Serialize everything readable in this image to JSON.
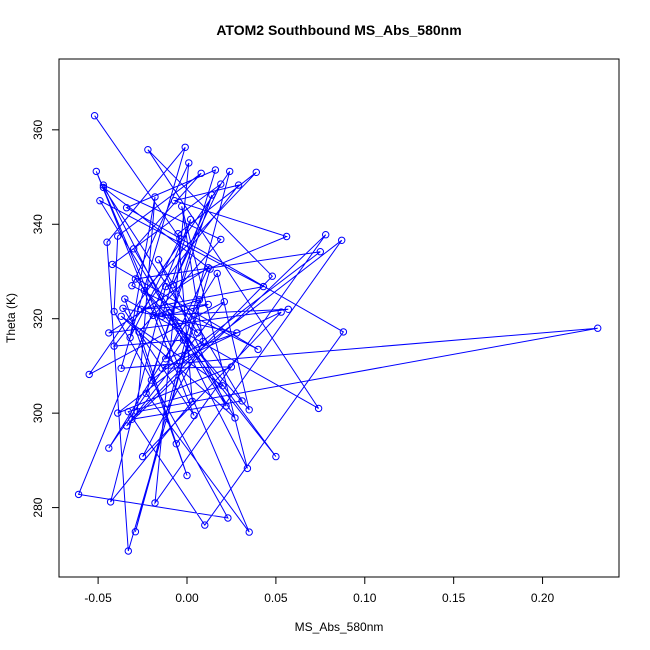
{
  "chart_data": {
    "type": "scatter",
    "title": "ATOM2 Southbound MS_Abs_580nm",
    "xlabel": "MS_Abs_580nm",
    "ylabel": "Theta (K)",
    "xlim": [
      -0.072,
      0.243
    ],
    "ylim": [
      265.3,
      375.0
    ],
    "xticks": [
      -0.05,
      0.0,
      0.05,
      0.1,
      0.15,
      0.2
    ],
    "xtick_labels": [
      "-0.05",
      "0.00",
      "0.05",
      "0.10",
      "0.15",
      "0.20"
    ],
    "yticks": [
      280,
      300,
      320,
      340,
      360
    ],
    "ytick_labels": [
      "280",
      "300",
      "320",
      "340",
      "360"
    ],
    "grid": false,
    "legend": "none",
    "connect_points": true,
    "color": "#0000ff",
    "series": [
      {
        "marker": "open-circle",
        "points": [
          [
            -0.052,
            363.0
          ],
          [
            -0.004,
            337.0
          ],
          [
            -0.032,
            316.0
          ],
          [
            -0.018,
            345.8
          ],
          [
            -0.028,
            300.3
          ],
          [
            0.231,
            318.0
          ],
          [
            -0.037,
            309.5
          ],
          [
            -0.001,
            356.3
          ],
          [
            -0.045,
            336.2
          ],
          [
            -0.033,
            270.8
          ],
          [
            0.013,
            330.5
          ],
          [
            -0.047,
            347.8
          ],
          [
            0.006,
            317.0
          ],
          [
            -0.01,
            321.3
          ],
          [
            0.05,
            290.8
          ],
          [
            -0.024,
            326.0
          ],
          [
            0.039,
            351.0
          ],
          [
            -0.005,
            338.0
          ],
          [
            0.003,
            302.5
          ],
          [
            -0.043,
            281.2
          ],
          [
            -0.012,
            326.8
          ],
          [
            0.056,
            337.4
          ],
          [
            -0.007,
            345.0
          ],
          [
            0.029,
            348.3
          ],
          [
            -0.041,
            314.2
          ],
          [
            -0.002,
            315.5
          ],
          [
            -0.044,
            292.6
          ],
          [
            0.017,
            329.6
          ],
          [
            0.035,
            300.7
          ],
          [
            -0.029,
            328.4
          ],
          [
            0.075,
            334.2
          ],
          [
            -0.02,
            307.0
          ],
          [
            0.016,
            351.5
          ],
          [
            -0.034,
            343.5
          ],
          [
            0.088,
            317.2
          ],
          [
            0.01,
            276.3
          ],
          [
            -0.033,
            300.3
          ],
          [
            0.02,
            305.8
          ],
          [
            -0.037,
            320.5
          ],
          [
            0.027,
            299.0
          ],
          [
            -0.03,
            334.8
          ],
          [
            0.008,
            350.8
          ],
          [
            -0.039,
            337.5
          ],
          [
            -0.041,
            321.5
          ],
          [
            0.023,
            277.8
          ],
          [
            -0.061,
            282.8
          ],
          [
            0.002,
            341.0
          ],
          [
            -0.014,
            320.5
          ],
          [
            0.012,
            323.0
          ],
          [
            -0.026,
            322.0
          ],
          [
            0.043,
            326.8
          ],
          [
            -0.049,
            345.0
          ],
          [
            0.022,
            301.5
          ],
          [
            -0.016,
            332.5
          ],
          [
            0.031,
            302.6
          ],
          [
            -0.031,
            298.7
          ],
          [
            0.048,
            329.0
          ],
          [
            -0.022,
            355.8
          ],
          [
            0.074,
            301.0
          ],
          [
            -0.035,
            324.2
          ],
          [
            0.0,
            286.8
          ],
          [
            -0.027,
            317.2
          ],
          [
            0.019,
            336.8
          ],
          [
            -0.047,
            348.3
          ],
          [
            0.034,
            288.3
          ],
          [
            -0.003,
            343.8
          ],
          [
            0.009,
            315.2
          ],
          [
            -0.025,
            290.8
          ],
          [
            0.053,
            321.4
          ],
          [
            -0.014,
            309.5
          ],
          [
            0.025,
            309.8
          ],
          [
            -0.039,
            300.0
          ],
          [
            0.087,
            336.6
          ],
          [
            -0.018,
            281.0
          ],
          [
            0.001,
            353.0
          ],
          [
            -0.031,
            327.0
          ],
          [
            0.04,
            313.5
          ],
          [
            -0.042,
            331.5
          ],
          [
            0.019,
            348.5
          ],
          [
            -0.008,
            327.2
          ],
          [
            0.014,
            346.2
          ],
          [
            -0.023,
            304.2
          ],
          [
            0.035,
            274.8
          ],
          [
            -0.051,
            351.2
          ],
          [
            0.004,
            299.5
          ],
          [
            -0.036,
            322.2
          ],
          [
            0.028,
            317.0
          ],
          [
            -0.012,
            311.5
          ],
          [
            0.012,
            330.8
          ],
          [
            -0.044,
            317.0
          ],
          [
            0.057,
            322.0
          ],
          [
            -0.019,
            320.7
          ],
          [
            0.007,
            324.0
          ],
          [
            -0.029,
            274.9
          ],
          [
            0.024,
            351.2
          ],
          [
            -0.055,
            308.2
          ],
          [
            0.021,
            323.6
          ],
          [
            -0.034,
            297.3
          ],
          [
            0.078,
            337.8
          ],
          [
            -0.006,
            293.5
          ]
        ]
      }
    ]
  }
}
